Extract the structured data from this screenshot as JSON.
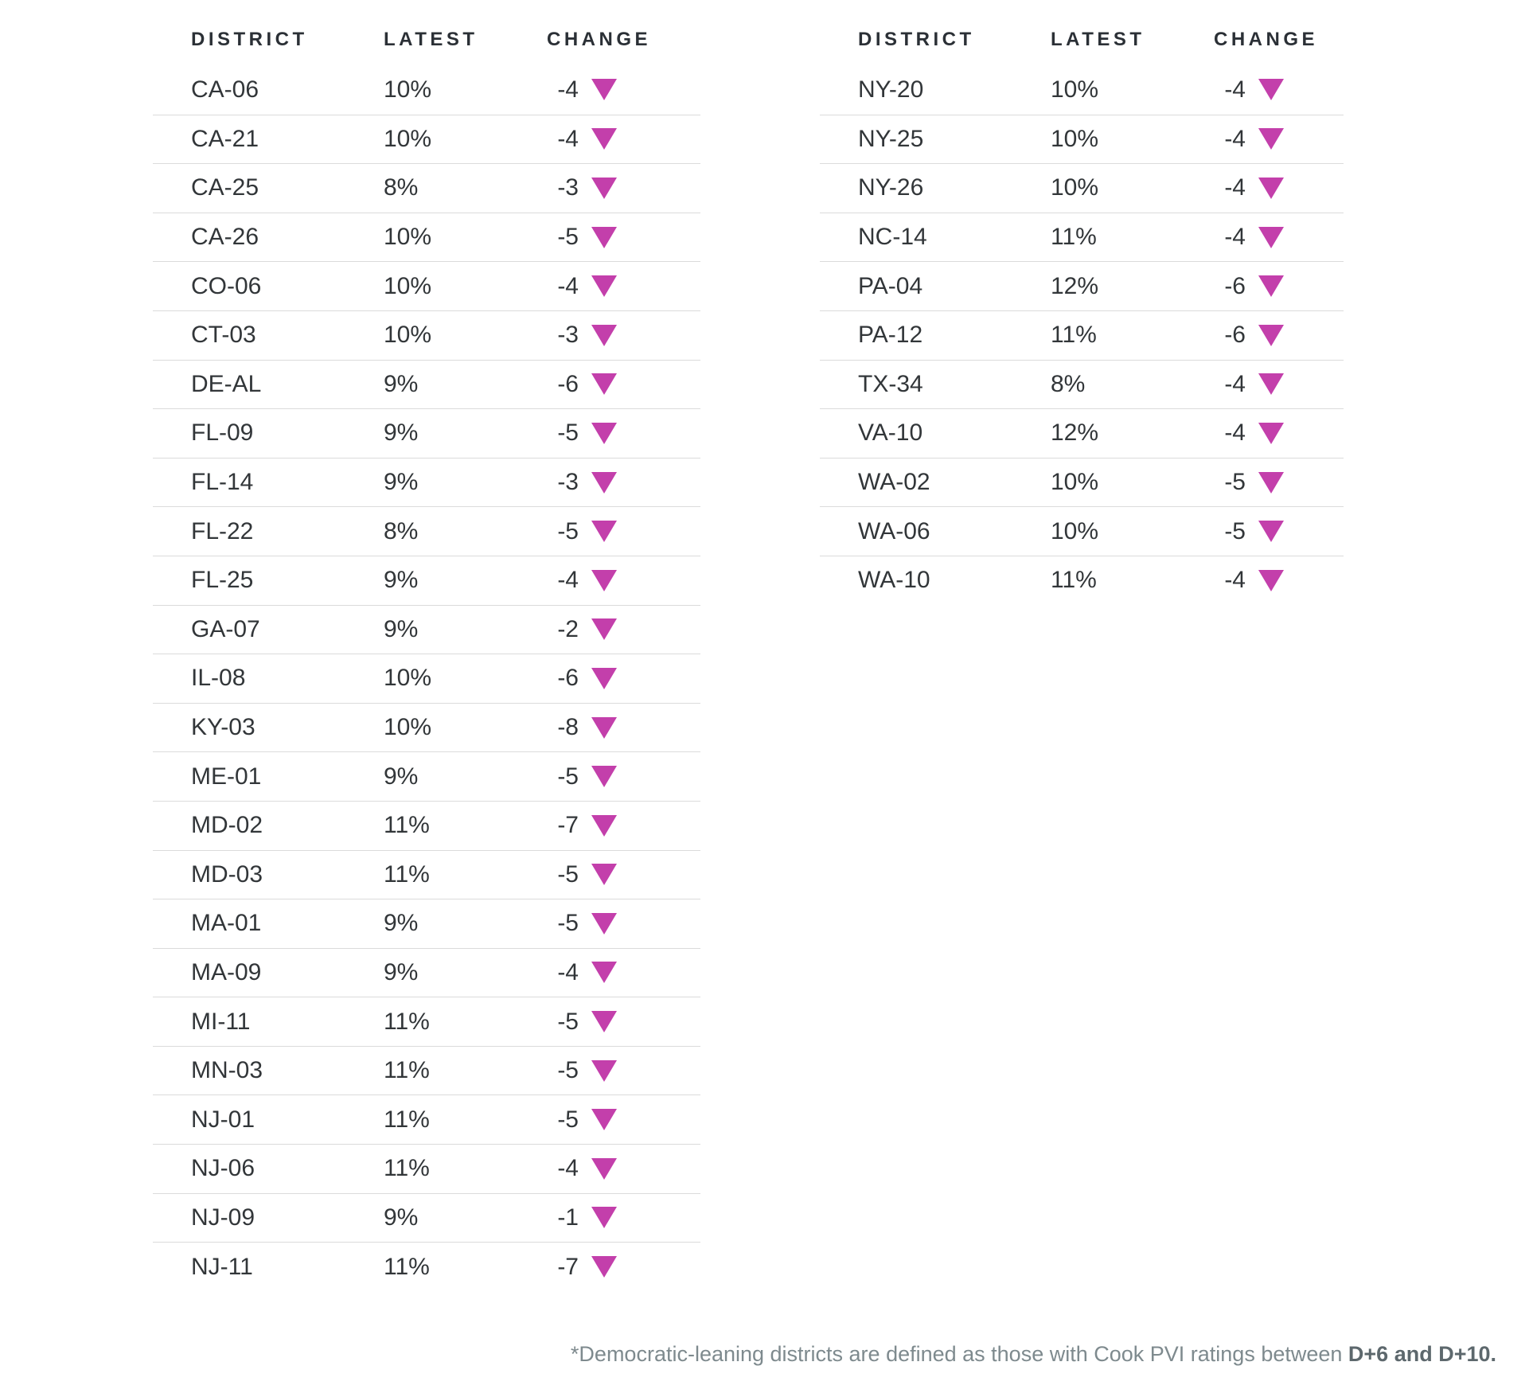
{
  "colors": {
    "accent": "#c33fab",
    "header_text": "#2b3036",
    "row_text": "#323639",
    "divider": "#dbdbdb",
    "footnote_text": "#7e8a8e",
    "footnote_bold_text": "#5d686d"
  },
  "chart_data": {
    "type": "table",
    "columns": [
      "DISTRICT",
      "LATEST",
      "CHANGE"
    ],
    "change_indicator": "down-triangle",
    "tables": [
      {
        "rows": [
          {
            "district": "CA-06",
            "latest": "10%",
            "change": "-4",
            "direction": "down"
          },
          {
            "district": "CA-21",
            "latest": "10%",
            "change": "-4",
            "direction": "down"
          },
          {
            "district": "CA-25",
            "latest": "8%",
            "change": "-3",
            "direction": "down"
          },
          {
            "district": "CA-26",
            "latest": "10%",
            "change": "-5",
            "direction": "down"
          },
          {
            "district": "CO-06",
            "latest": "10%",
            "change": "-4",
            "direction": "down"
          },
          {
            "district": "CT-03",
            "latest": "10%",
            "change": "-3",
            "direction": "down"
          },
          {
            "district": "DE-AL",
            "latest": "9%",
            "change": "-6",
            "direction": "down"
          },
          {
            "district": "FL-09",
            "latest": "9%",
            "change": "-5",
            "direction": "down"
          },
          {
            "district": "FL-14",
            "latest": "9%",
            "change": "-3",
            "direction": "down"
          },
          {
            "district": "FL-22",
            "latest": "8%",
            "change": "-5",
            "direction": "down"
          },
          {
            "district": "FL-25",
            "latest": "9%",
            "change": "-4",
            "direction": "down"
          },
          {
            "district": "GA-07",
            "latest": "9%",
            "change": "-2",
            "direction": "down"
          },
          {
            "district": "IL-08",
            "latest": "10%",
            "change": "-6",
            "direction": "down"
          },
          {
            "district": "KY-03",
            "latest": "10%",
            "change": "-8",
            "direction": "down"
          },
          {
            "district": "ME-01",
            "latest": "9%",
            "change": "-5",
            "direction": "down"
          },
          {
            "district": "MD-02",
            "latest": "11%",
            "change": "-7",
            "direction": "down"
          },
          {
            "district": "MD-03",
            "latest": "11%",
            "change": "-5",
            "direction": "down"
          },
          {
            "district": "MA-01",
            "latest": "9%",
            "change": "-5",
            "direction": "down"
          },
          {
            "district": "MA-09",
            "latest": "9%",
            "change": "-4",
            "direction": "down"
          },
          {
            "district": "MI-11",
            "latest": "11%",
            "change": "-5",
            "direction": "down"
          },
          {
            "district": "MN-03",
            "latest": "11%",
            "change": "-5",
            "direction": "down"
          },
          {
            "district": "NJ-01",
            "latest": "11%",
            "change": "-5",
            "direction": "down"
          },
          {
            "district": "NJ-06",
            "latest": "11%",
            "change": "-4",
            "direction": "down"
          },
          {
            "district": "NJ-09",
            "latest": "9%",
            "change": "-1",
            "direction": "down"
          },
          {
            "district": "NJ-11",
            "latest": "11%",
            "change": "-7",
            "direction": "down"
          }
        ]
      },
      {
        "rows": [
          {
            "district": "NY-20",
            "latest": "10%",
            "change": "-4",
            "direction": "down"
          },
          {
            "district": "NY-25",
            "latest": "10%",
            "change": "-4",
            "direction": "down"
          },
          {
            "district": "NY-26",
            "latest": "10%",
            "change": "-4",
            "direction": "down"
          },
          {
            "district": "NC-14",
            "latest": "11%",
            "change": "-4",
            "direction": "down"
          },
          {
            "district": "PA-04",
            "latest": "12%",
            "change": "-6",
            "direction": "down"
          },
          {
            "district": "PA-12",
            "latest": "11%",
            "change": "-6",
            "direction": "down"
          },
          {
            "district": "TX-34",
            "latest": "8%",
            "change": "-4",
            "direction": "down"
          },
          {
            "district": "VA-10",
            "latest": "12%",
            "change": "-4",
            "direction": "down"
          },
          {
            "district": "WA-02",
            "latest": "10%",
            "change": "-5",
            "direction": "down"
          },
          {
            "district": "WA-06",
            "latest": "10%",
            "change": "-5",
            "direction": "down"
          },
          {
            "district": "WA-10",
            "latest": "11%",
            "change": "-4",
            "direction": "down"
          }
        ]
      }
    ],
    "footnote_prefix": "*Democratic-leaning districts are defined as those with Cook PVI ratings between ",
    "footnote_bold": "D+6 and D+10."
  }
}
